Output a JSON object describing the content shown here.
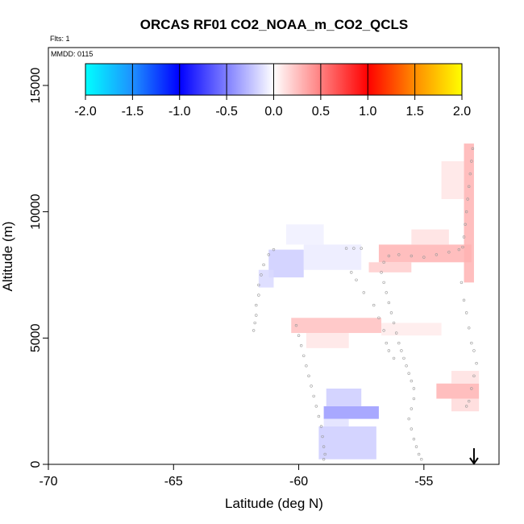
{
  "chart_data": {
    "type": "heatmap",
    "title": "ORCAS RF01 CO2_NOAA_m_CO2_QCLS",
    "flights_note": "Flts: 1",
    "date_note": "MMDD: 0115",
    "xlabel": "Latitude (deg N)",
    "ylabel": "Altitude (m)",
    "xlim": [
      -70,
      -52
    ],
    "ylim": [
      0,
      16500
    ],
    "x_ticks": [
      -70,
      -65,
      -60,
      -55
    ],
    "x_tick_labels": [
      "-70",
      "-65",
      "-60",
      "-55"
    ],
    "y_ticks": [
      0,
      5000,
      10000,
      15000
    ],
    "y_tick_labels": [
      "0",
      "5000",
      "10000",
      "15000"
    ],
    "colorbar": {
      "range": [
        -2.0,
        2.0
      ],
      "ticks": [
        -2.0,
        -1.5,
        -1.0,
        -0.5,
        0.0,
        0.5,
        1.0,
        1.5,
        2.0
      ],
      "tick_labels": [
        "-2.0",
        "-1.5",
        "-1.0",
        "-0.5",
        "0.0",
        "0.5",
        "1.0",
        "1.5",
        "2.0"
      ],
      "colors": [
        "#00ffff",
        "#1e90ff",
        "#0000ff",
        "#ffffff",
        "#ff0000",
        "#ff8c00",
        "#ffff00"
      ]
    },
    "cells": [
      {
        "lat0": -61.2,
        "lat1": -59.8,
        "alt0": 7400,
        "alt1": 8500,
        "value": -0.2
      },
      {
        "lat0": -61.6,
        "lat1": -61.0,
        "alt0": 7000,
        "alt1": 7700,
        "value": -0.15
      },
      {
        "lat0": -59.8,
        "lat1": -57.5,
        "alt0": 7700,
        "alt1": 8700,
        "value": -0.08
      },
      {
        "lat0": -60.5,
        "lat1": -59.0,
        "alt0": 8700,
        "alt1": 9500,
        "value": -0.06
      },
      {
        "lat0": -56.8,
        "lat1": -53.1,
        "alt0": 8000,
        "alt1": 8700,
        "value": 0.3
      },
      {
        "lat0": -55.5,
        "lat1": -54.0,
        "alt0": 8700,
        "alt1": 9300,
        "value": 0.12
      },
      {
        "lat0": -57.2,
        "lat1": -55.5,
        "alt0": 7600,
        "alt1": 8000,
        "value": 0.2
      },
      {
        "lat0": -53.4,
        "lat1": -53.0,
        "alt0": 7200,
        "alt1": 12700,
        "value": 0.3
      },
      {
        "lat0": -54.3,
        "lat1": -53.4,
        "alt0": 10500,
        "alt1": 12000,
        "value": 0.1
      },
      {
        "lat0": -60.3,
        "lat1": -56.7,
        "alt0": 5200,
        "alt1": 5800,
        "value": 0.25
      },
      {
        "lat0": -59.7,
        "lat1": -58.0,
        "alt0": 4600,
        "alt1": 5200,
        "value": 0.1
      },
      {
        "lat0": -56.7,
        "lat1": -54.3,
        "alt0": 5100,
        "alt1": 5600,
        "value": 0.08
      },
      {
        "lat0": -54.5,
        "lat1": -52.8,
        "alt0": 2600,
        "alt1": 3200,
        "value": 0.3
      },
      {
        "lat0": -53.9,
        "lat1": -52.8,
        "alt0": 2100,
        "alt1": 2600,
        "value": 0.15
      },
      {
        "lat0": -53.9,
        "lat1": -52.8,
        "alt0": 3200,
        "alt1": 3700,
        "value": 0.12
      },
      {
        "lat0": -59.0,
        "lat1": -56.8,
        "alt0": 1800,
        "alt1": 2300,
        "value": -0.4
      },
      {
        "lat0": -58.9,
        "lat1": -57.5,
        "alt0": 2300,
        "alt1": 3000,
        "value": -0.2
      },
      {
        "lat0": -59.2,
        "lat1": -56.9,
        "alt0": 200,
        "alt1": 1500,
        "value": -0.2
      },
      {
        "lat0": -59.0,
        "lat1": -58.0,
        "alt0": 1500,
        "alt1": 1800,
        "value": -0.12
      }
    ],
    "flight_track": [
      [
        -53.05,
        12500
      ],
      [
        -53.1,
        12000
      ],
      [
        -53.15,
        11500
      ],
      [
        -53.2,
        11000
      ],
      [
        -53.25,
        10500
      ],
      [
        -53.3,
        10000
      ],
      [
        -53.35,
        9500
      ],
      [
        -53.4,
        9000
      ],
      [
        -53.45,
        8600
      ],
      [
        -53.6,
        8500
      ],
      [
        -54.0,
        8400
      ],
      [
        -54.5,
        8300
      ],
      [
        -55.0,
        8200
      ],
      [
        -55.5,
        8250
      ],
      [
        -56.0,
        8300
      ],
      [
        -56.4,
        8250
      ],
      [
        -56.6,
        8000
      ],
      [
        -56.7,
        7600
      ],
      [
        -56.6,
        7200
      ],
      [
        -56.5,
        6800
      ],
      [
        -56.4,
        6400
      ],
      [
        -56.3,
        6000
      ],
      [
        -56.2,
        5600
      ],
      [
        -56.1,
        5200
      ],
      [
        -56.0,
        4800
      ],
      [
        -55.9,
        4500
      ],
      [
        -55.8,
        4200
      ],
      [
        -55.7,
        3900
      ],
      [
        -55.6,
        3600
      ],
      [
        -55.5,
        3300
      ],
      [
        -55.4,
        3000
      ],
      [
        -55.4,
        2600
      ],
      [
        -55.5,
        2200
      ],
      [
        -55.6,
        1800
      ],
      [
        -55.5,
        1400
      ],
      [
        -55.4,
        1000
      ],
      [
        -55.3,
        700
      ],
      [
        -55.2,
        400
      ],
      [
        -55.1,
        200
      ],
      [
        -57.5,
        8550
      ],
      [
        -57.8,
        8550
      ],
      [
        -58.1,
        8550
      ],
      [
        -57.9,
        7600
      ],
      [
        -57.7,
        7300
      ],
      [
        -57.4,
        6800
      ],
      [
        -57.0,
        6300
      ],
      [
        -56.8,
        5800
      ],
      [
        -56.6,
        5300
      ],
      [
        -56.5,
        4800
      ],
      [
        -56.4,
        4500
      ],
      [
        -56.2,
        4200
      ],
      [
        -61.0,
        8500
      ],
      [
        -61.2,
        8300
      ],
      [
        -61.4,
        7900
      ],
      [
        -61.5,
        7500
      ],
      [
        -61.6,
        7100
      ],
      [
        -61.6,
        6700
      ],
      [
        -61.7,
        6300
      ],
      [
        -61.7,
        5900
      ],
      [
        -61.75,
        5600
      ],
      [
        -61.8,
        5300
      ],
      [
        -60.1,
        5500
      ],
      [
        -60.0,
        5100
      ],
      [
        -59.9,
        4700
      ],
      [
        -59.8,
        4300
      ],
      [
        -59.7,
        3900
      ],
      [
        -59.6,
        3500
      ],
      [
        -59.5,
        3100
      ],
      [
        -59.4,
        2700
      ],
      [
        -59.3,
        2300
      ],
      [
        -59.2,
        1900
      ],
      [
        -59.1,
        1500
      ],
      [
        -59.05,
        1100
      ],
      [
        -59.0,
        700
      ],
      [
        -58.95,
        400
      ],
      [
        -59.0,
        200
      ],
      [
        -53.5,
        7200
      ],
      [
        -53.4,
        6500
      ],
      [
        -53.3,
        6000
      ],
      [
        -53.2,
        5400
      ],
      [
        -53.1,
        4800
      ],
      [
        -53.0,
        4500
      ],
      [
        -52.9,
        4000
      ],
      [
        -53.0,
        3500
      ],
      [
        -53.1,
        3000
      ],
      [
        -53.2,
        2500
      ],
      [
        -53.3,
        2300
      ]
    ],
    "marker_lat": -53.0,
    "grid": false,
    "legend": "colorbar top"
  }
}
